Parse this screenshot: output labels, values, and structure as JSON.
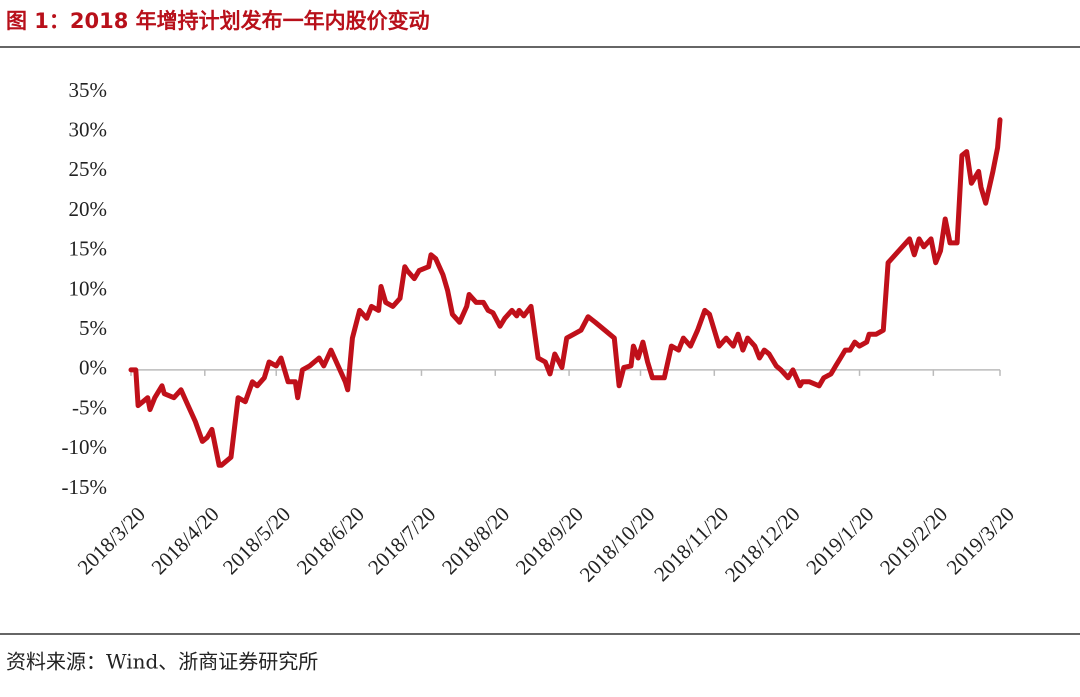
{
  "chart_data": {
    "type": "line",
    "title": "图 1：2018 年增持计划发布一年内股价变动",
    "source": "资料来源：Wind、浙商证券研究所",
    "color": "#c0101a",
    "grid": false,
    "x": [
      "2018/3/20",
      "2018/3/22",
      "2018/3/23",
      "2018/3/25",
      "2018/3/27",
      "2018/3/28",
      "2018/3/30",
      "2018/4/2",
      "2018/4/3",
      "2018/4/7",
      "2018/4/10",
      "2018/4/13",
      "2018/4/16",
      "2018/4/19",
      "2018/4/21",
      "2018/4/23",
      "2018/4/26",
      "2018/4/27",
      "2018/5/1",
      "2018/5/4",
      "2018/5/7",
      "2018/5/10",
      "2018/5/12",
      "2018/5/15",
      "2018/5/17",
      "2018/5/20",
      "2018/5/22",
      "2018/5/25",
      "2018/5/28",
      "2018/5/29",
      "2018/5/31",
      "2018/6/3",
      "2018/6/7",
      "2018/6/9",
      "2018/6/12",
      "2018/6/15",
      "2018/6/18",
      "2018/6/19",
      "2018/6/21",
      "2018/6/24",
      "2018/6/27",
      "2018/6/29",
      "2018/7/2",
      "2018/7/3",
      "2018/7/5",
      "2018/7/8",
      "2018/7/11",
      "2018/7/13",
      "2018/7/14",
      "2018/7/17",
      "2018/7/19",
      "2018/7/23",
      "2018/7/24",
      "2018/7/26",
      "2018/7/29",
      "2018/7/31",
      "2018/8/2",
      "2018/8/5",
      "2018/8/8",
      "2018/8/9",
      "2018/8/12",
      "2018/8/15",
      "2018/8/17",
      "2018/8/19",
      "2018/8/22",
      "2018/8/24",
      "2018/8/27",
      "2018/8/29",
      "2018/8/30",
      "2018/9/1",
      "2018/9/4",
      "2018/9/7",
      "2018/9/10",
      "2018/9/12",
      "2018/9/14",
      "2018/9/17",
      "2018/9/19",
      "2018/9/22",
      "2018/9/25",
      "2018/9/28",
      "2018/10/1",
      "2018/10/5",
      "2018/10/9",
      "2018/10/11",
      "2018/10/13",
      "2018/10/16",
      "2018/10/17",
      "2018/10/19",
      "2018/10/21",
      "2018/10/23",
      "2018/10/25",
      "2018/10/28",
      "2018/10/30",
      "2018/11/2",
      "2018/11/5",
      "2018/11/7",
      "2018/11/10",
      "2018/11/13",
      "2018/11/16",
      "2018/11/18",
      "2018/11/20",
      "2018/11/22",
      "2018/11/25",
      "2018/11/28",
      "2018/11/30",
      "2018/12/2",
      "2018/12/4",
      "2018/12/7",
      "2018/12/9",
      "2018/12/11",
      "2018/12/13",
      "2018/12/16",
      "2018/12/18",
      "2018/12/21",
      "2018/12/23",
      "2018/12/26",
      "2018/12/27",
      "2018/12/30",
      "2019/1/3",
      "2019/1/5",
      "2019/1/8",
      "2019/1/10",
      "2019/1/12",
      "2019/1/14",
      "2019/1/16",
      "2019/1/18",
      "2019/1/20",
      "2019/1/23",
      "2019/1/24",
      "2019/1/27",
      "2019/1/30",
      "2019/2/1",
      "2019/2/4",
      "2019/2/7",
      "2019/2/10",
      "2019/2/12",
      "2019/2/14",
      "2019/2/16",
      "2019/2/19",
      "2019/2/21",
      "2019/2/23",
      "2019/2/25",
      "2019/2/27",
      "2019/3/2",
      "2019/3/4",
      "2019/3/6",
      "2019/3/8",
      "2019/3/11",
      "2019/3/12",
      "2019/3/14",
      "2019/3/17",
      "2019/3/19",
      "2019/3/20"
    ],
    "values": [
      0,
      0,
      -4.5,
      -4,
      -3.5,
      -5,
      -3.5,
      -2,
      -3,
      -3.5,
      -2.5,
      -4.5,
      -6.5,
      -9,
      -8.5,
      -7.5,
      -12,
      -12,
      -11,
      -3.5,
      -4,
      -1.5,
      -2,
      -1,
      1,
      0.5,
      1.5,
      -1.5,
      -1.5,
      -3.5,
      0,
      0.5,
      1.5,
      0.5,
      2.5,
      0.5,
      -1.5,
      -2.5,
      4,
      7.5,
      6.5,
      8,
      7.5,
      10.5,
      8.5,
      8,
      9,
      13,
      12.5,
      11.5,
      12.5,
      13,
      14.5,
      14,
      12,
      10,
      7,
      6,
      8,
      9.5,
      8.5,
      8.5,
      7.5,
      7.2,
      5.5,
      6.5,
      7.5,
      6.8,
      7.5,
      6.8,
      8,
      1.5,
      1,
      -0.5,
      2,
      0.3,
      4,
      4.5,
      5,
      6.7,
      6,
      5,
      4,
      -2,
      0.3,
      0.5,
      3,
      1.5,
      3.5,
      1,
      -1,
      -1,
      -1,
      3,
      2.5,
      4,
      3,
      5,
      7.5,
      7,
      5,
      3,
      4,
      3,
      4.5,
      2.5,
      4,
      3,
      1.5,
      2.5,
      2,
      0.5,
      0,
      -1,
      0,
      -2,
      -1.5,
      -1.5,
      -2,
      -1,
      -0.5,
      0.5,
      1.5,
      2.5,
      2.5,
      3.5,
      3,
      3.5,
      4.5,
      4.5,
      5,
      13.5,
      14.5,
      15.5,
      16.5,
      14.5,
      16.5,
      15.5,
      16.5,
      13.5,
      15,
      19,
      16,
      16,
      27,
      27.5,
      23.5,
      25,
      23,
      21,
      25,
      28,
      31.5
    ],
    "xlim": [
      "2018/3/20",
      "2019/3/20"
    ],
    "xticks": [
      "2018/3/20",
      "2018/4/20",
      "2018/5/20",
      "2018/6/20",
      "2018/7/20",
      "2018/8/20",
      "2018/9/20",
      "2018/10/20",
      "2018/11/20",
      "2018/12/20",
      "2019/1/20",
      "2019/2/20",
      "2019/3/20"
    ],
    "ylim": [
      -15,
      35
    ],
    "yticks": [
      {
        "value": -15,
        "label": "-15%"
      },
      {
        "value": -10,
        "label": "-10%"
      },
      {
        "value": -5,
        "label": "-5%"
      },
      {
        "value": 0,
        "label": "0%"
      },
      {
        "value": 5,
        "label": "5%"
      },
      {
        "value": 10,
        "label": "10%"
      },
      {
        "value": 15,
        "label": "15%"
      },
      {
        "value": 20,
        "label": "20%"
      },
      {
        "value": 25,
        "label": "25%"
      },
      {
        "value": 30,
        "label": "30%"
      },
      {
        "value": 35,
        "label": "35%"
      }
    ]
  }
}
